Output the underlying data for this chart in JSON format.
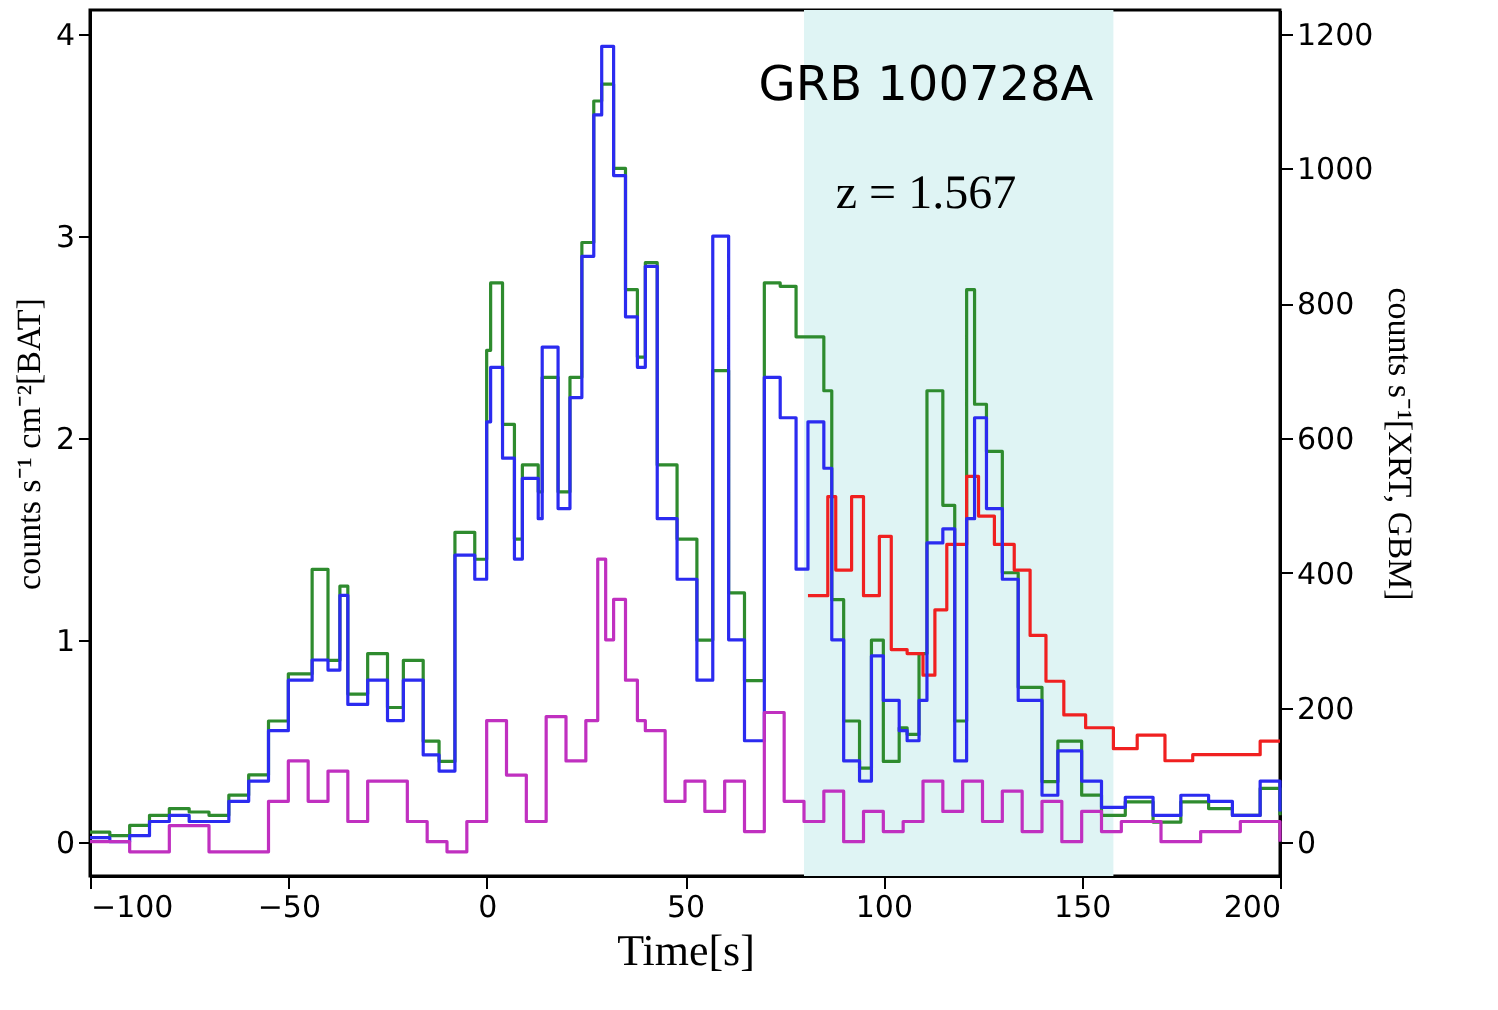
{
  "chart_data": {
    "type": "step",
    "annotations": [
      "GRB 100728A",
      "z = 1.567"
    ],
    "xlabel": "Time[s]",
    "ylabel": "counts s⁻¹ cm⁻²[BAT]",
    "y2label": "counts s⁻¹[XRT, GBM]",
    "xlim": [
      -100,
      200
    ],
    "xticks": [
      -100,
      -50,
      0,
      50,
      100,
      150,
      200
    ],
    "ylim": [
      -0.17,
      4.12
    ],
    "yticks": [
      0,
      1,
      2,
      3,
      4
    ],
    "y2lim": [
      -50,
      1235
    ],
    "y2ticks": [
      0,
      200,
      400,
      600,
      800,
      1000,
      1200
    ],
    "bands": [
      {
        "axis": "x",
        "from": 80,
        "to": 158,
        "color": "#dff4f4"
      }
    ],
    "grid": false,
    "series": [
      {
        "color": "#2e8b2e",
        "axis": "y2",
        "x": [
          -100,
          -95,
          -90,
          -85,
          -80,
          -75,
          -70,
          -65,
          -60,
          -55,
          -50,
          -44,
          -40,
          -37,
          -35,
          -30,
          -25,
          -21,
          -16,
          -12,
          -8,
          -3,
          0,
          1,
          4,
          7,
          9,
          13,
          14,
          18,
          21,
          24,
          27,
          29,
          32,
          35,
          38,
          40,
          43,
          48,
          53,
          57,
          61,
          65,
          70,
          74,
          78,
          81,
          85,
          87,
          90,
          94,
          97,
          100,
          104,
          106,
          109,
          111,
          115,
          118,
          121,
          123,
          126,
          130,
          134,
          140,
          144,
          150,
          155,
          161,
          168,
          175,
          182,
          188,
          195,
          200
        ],
        "values": [
          15,
          10,
          25,
          40,
          50,
          45,
          40,
          70,
          100,
          180,
          250,
          405,
          270,
          380,
          220,
          280,
          200,
          270,
          150,
          120,
          460,
          420,
          730,
          830,
          620,
          450,
          560,
          520,
          690,
          520,
          690,
          890,
          1100,
          1125,
          1000,
          820,
          720,
          860,
          560,
          450,
          300,
          700,
          370,
          240,
          830,
          825,
          750,
          750,
          670,
          360,
          180,
          110,
          300,
          120,
          170,
          160,
          280,
          670,
          500,
          180,
          820,
          650,
          580,
          400,
          230,
          90,
          150,
          70,
          40,
          60,
          30,
          60,
          50,
          40,
          80,
          40
        ]
      },
      {
        "color": "#f02020",
        "axis": "y2",
        "x": [
          81,
          86,
          88,
          92,
          95,
          99,
          102,
          106,
          110,
          113,
          116,
          121,
          124,
          128,
          133,
          137,
          141,
          145.5,
          151,
          158,
          164,
          171,
          178,
          187,
          195,
          200
        ],
        "values": [
          366,
          513,
          404,
          513,
          366,
          454,
          286,
          280,
          248,
          345,
          442,
          543,
          484,
          442,
          404,
          307,
          239,
          189,
          170,
          139,
          159,
          121,
          130,
          130,
          150,
          150
        ]
      },
      {
        "color": "#2b2bf0",
        "axis": "y",
        "x": [
          -100,
          -95,
          -90,
          -85,
          -80,
          -75,
          -70,
          -65,
          -60,
          -55,
          -50,
          -44,
          -40,
          -37,
          -35,
          -30,
          -25,
          -21,
          -16,
          -12,
          -8,
          -3,
          0,
          1,
          4,
          7,
          9,
          13,
          14,
          18,
          21,
          24,
          27,
          29,
          32,
          35,
          38,
          40,
          43,
          48,
          53,
          57,
          61,
          65,
          70,
          74,
          78,
          81,
          85,
          87,
          90,
          94,
          97,
          100,
          104,
          106,
          109,
          111,
          115,
          118,
          121,
          123,
          126,
          130,
          134,
          140,
          144,
          150,
          155,
          161,
          168,
          175,
          182,
          188,
          195,
          200
        ],
        "values": [
          0.02,
          0.0,
          0.03,
          0.1,
          0.13,
          0.1,
          0.1,
          0.2,
          0.3,
          0.55,
          0.8,
          0.9,
          0.85,
          1.22,
          0.68,
          0.8,
          0.6,
          0.8,
          0.43,
          0.35,
          1.42,
          1.3,
          2.08,
          2.35,
          1.9,
          1.4,
          1.8,
          1.6,
          2.45,
          1.65,
          2.2,
          2.9,
          3.6,
          3.94,
          3.3,
          2.6,
          2.35,
          2.85,
          1.6,
          1.3,
          0.8,
          3.0,
          1.0,
          0.5,
          2.3,
          2.1,
          1.35,
          2.08,
          1.85,
          1.0,
          0.4,
          0.3,
          0.92,
          0.7,
          0.55,
          0.5,
          0.7,
          1.48,
          1.55,
          0.4,
          1.6,
          2.1,
          1.65,
          1.3,
          0.7,
          0.23,
          0.45,
          0.3,
          0.17,
          0.22,
          0.13,
          0.23,
          0.2,
          0.13,
          0.3,
          0.15
        ]
      },
      {
        "color": "#c030c0",
        "axis": "y",
        "x": [
          -100,
          -90,
          -80,
          -70,
          -60,
          -55,
          -50,
          -45,
          -40,
          -35,
          -30,
          -20,
          -15,
          -10,
          -5,
          0,
          5,
          10,
          15,
          20,
          25,
          28,
          30,
          32,
          35,
          38,
          40,
          45,
          50,
          55,
          60,
          65,
          70,
          75,
          80,
          85,
          90,
          95,
          100,
          105,
          110,
          115,
          120,
          125,
          130,
          135,
          140,
          145,
          150,
          155,
          160,
          170,
          180,
          190,
          200
        ],
        "values": [
          0.0,
          -0.05,
          0.08,
          -0.05,
          -0.05,
          0.2,
          0.4,
          0.2,
          0.35,
          0.1,
          0.3,
          0.1,
          0.0,
          -0.05,
          0.1,
          0.6,
          0.33,
          0.1,
          0.62,
          0.4,
          0.6,
          1.4,
          1.0,
          1.2,
          0.8,
          0.6,
          0.55,
          0.2,
          0.3,
          0.15,
          0.3,
          0.05,
          0.64,
          0.2,
          0.1,
          0.25,
          0.0,
          0.15,
          0.05,
          0.1,
          0.3,
          0.15,
          0.3,
          0.1,
          0.25,
          0.05,
          0.2,
          0.0,
          0.15,
          0.05,
          0.1,
          0.0,
          0.05,
          0.1,
          0.0
        ]
      }
    ]
  }
}
